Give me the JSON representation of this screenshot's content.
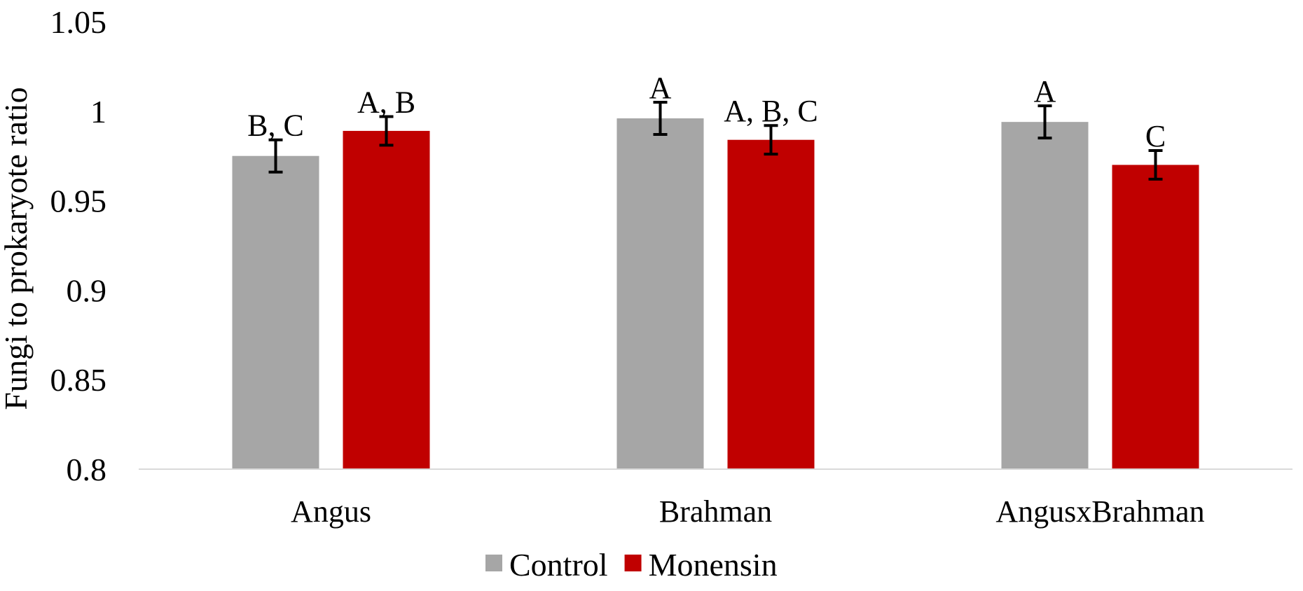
{
  "chart_data": {
    "type": "bar",
    "title": "",
    "xlabel": "",
    "ylabel": "Fungi to prokaryote ratio",
    "ylim": [
      0.8,
      1.05
    ],
    "yticks": [
      "0.8",
      "0.85",
      "0.9",
      "0.95",
      "1",
      "1.05"
    ],
    "ytick_values": [
      0.8,
      0.85,
      0.9,
      0.95,
      1.0,
      1.05
    ],
    "grid": false,
    "legend_position": "bottom",
    "categories": [
      "Angus",
      "Brahman",
      "AngusxBrahman"
    ],
    "series": [
      {
        "name": "Control",
        "color": "#a6a6a6",
        "values": [
          0.975,
          0.996,
          0.994
        ],
        "errors": [
          0.009,
          0.009,
          0.009
        ],
        "labels": [
          "B, C",
          "A",
          "A"
        ]
      },
      {
        "name": "Monensin",
        "color": "#c00000",
        "values": [
          0.989,
          0.984,
          0.97
        ],
        "errors": [
          0.008,
          0.008,
          0.008
        ],
        "labels": [
          "A, B",
          "A, B, C",
          "C"
        ]
      }
    ]
  }
}
